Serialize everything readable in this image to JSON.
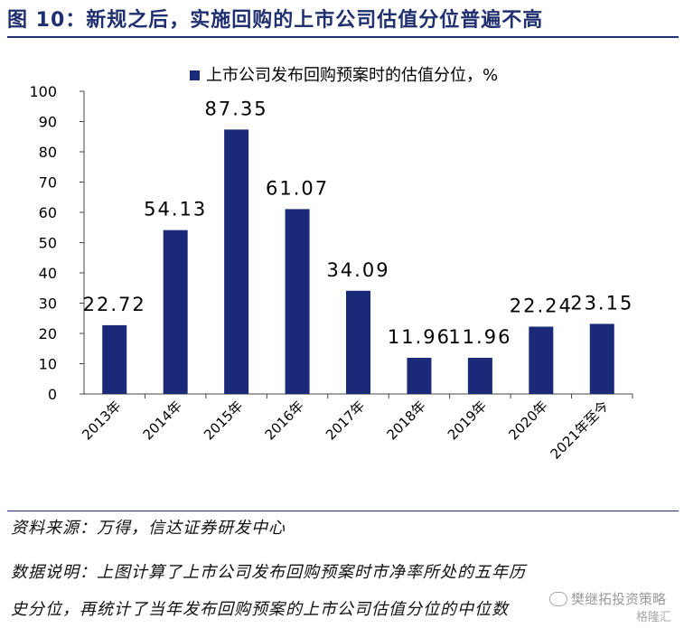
{
  "figure": {
    "title": "图 10：新规之后，实施回购的上市公司估值分位普遍不高"
  },
  "chart_data": {
    "type": "bar",
    "categories": [
      "2013年",
      "2014年",
      "2015年",
      "2016年",
      "2017年",
      "2018年",
      "2019年",
      "2020年",
      "2021年至今"
    ],
    "series": [
      {
        "name": "上市公司发布回购预案时的估值分位，%",
        "values": [
          22.72,
          54.13,
          87.35,
          61.07,
          34.09,
          11.96,
          11.96,
          22.24,
          23.15
        ],
        "labels": [
          "22.72",
          "54.13",
          "87.35",
          "61.07",
          "34.09",
          "11.96",
          "11.96",
          "22.24",
          "23.15"
        ]
      }
    ],
    "ylim": [
      0,
      100
    ],
    "yticks": [
      0,
      10,
      20,
      30,
      40,
      50,
      60,
      70,
      80,
      90,
      100
    ],
    "grid": false,
    "legend": "top-center",
    "bar_color": "#1b2a78"
  },
  "notes": {
    "source": "资料来源：万得，信达证券研发中心",
    "desc_line1": "数据说明：上图计算了上市公司发布回购预案时市净率所处的五年历",
    "desc_line2": "史分位，再统计了当年发布回购预案的上市公司估值分位的中位数"
  },
  "watermark": {
    "text": "樊继拓投资策略",
    "subtext": "格隆汇"
  }
}
